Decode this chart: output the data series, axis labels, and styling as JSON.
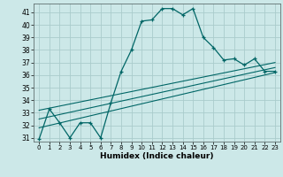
{
  "xlabel": "Humidex (Indice chaleur)",
  "bg_color": "#cce8e8",
  "grid_color": "#aacccc",
  "line_color": "#006666",
  "xlim": [
    -0.5,
    23.5
  ],
  "ylim": [
    30.7,
    41.7
  ],
  "xticks": [
    0,
    1,
    2,
    3,
    4,
    5,
    6,
    7,
    8,
    9,
    10,
    11,
    12,
    13,
    14,
    15,
    16,
    17,
    18,
    19,
    20,
    21,
    22,
    23
  ],
  "yticks": [
    31,
    32,
    33,
    34,
    35,
    36,
    37,
    38,
    39,
    40,
    41
  ],
  "curve1_x": [
    0,
    1,
    2,
    3,
    4,
    5,
    6,
    7,
    8,
    9,
    10,
    11,
    12,
    13,
    14,
    15,
    16,
    17,
    18,
    19,
    20,
    21,
    22,
    23
  ],
  "curve1_y": [
    30.9,
    33.3,
    32.2,
    31.0,
    32.2,
    32.2,
    31.0,
    33.8,
    36.3,
    38.0,
    40.3,
    40.4,
    41.3,
    41.3,
    40.8,
    41.3,
    39.0,
    38.2,
    37.2,
    37.3,
    36.8,
    37.3,
    36.3,
    36.3
  ],
  "curve2_x": [
    0,
    23
  ],
  "curve2_y": [
    31.8,
    36.2
  ],
  "curve3_x": [
    0,
    23
  ],
  "curve3_y": [
    32.5,
    36.6
  ],
  "curve4_x": [
    0,
    23
  ],
  "curve4_y": [
    33.2,
    37.0
  ]
}
